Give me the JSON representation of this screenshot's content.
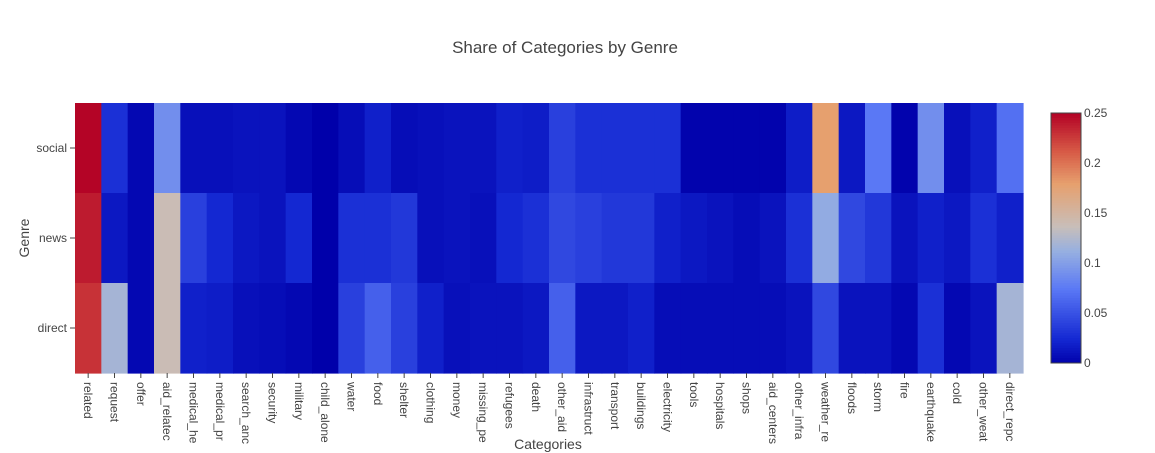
{
  "chart_data": {
    "type": "heatmap",
    "title": "Share of Categories by Genre",
    "xlabel": "Categories",
    "ylabel": "Genre",
    "categories": [
      "related",
      "request",
      "offer",
      "aid_related",
      "medical_help",
      "medical_products",
      "search_and_rescue",
      "security",
      "military",
      "child_alone",
      "water",
      "food",
      "shelter",
      "clothing",
      "money",
      "missing_people",
      "refugees",
      "death",
      "other_aid",
      "infrastructure_related",
      "transport",
      "buildings",
      "electricity",
      "tools",
      "hospitals",
      "shops",
      "aid_centers",
      "other_infrastructure",
      "weather_related",
      "floods",
      "storm",
      "fire",
      "earthquake",
      "cold",
      "other_weather",
      "direct_report"
    ],
    "tick_labels": [
      "related",
      "request",
      "offer",
      "aid_relatec",
      "medical_he",
      "medical_pr",
      "search_anc",
      "security",
      "military",
      "child_alone",
      "water",
      "food",
      "shelter",
      "clothing",
      "money",
      "missing_pe",
      "refugees",
      "death",
      "other_aid",
      "infrastruct",
      "transport",
      "buildings",
      "electricity",
      "tools",
      "hospitals",
      "shops",
      "aid_centers",
      "other_infra",
      "weather_re",
      "floods",
      "storm",
      "fire",
      "earthquake",
      "cold",
      "other_weat",
      "direct_repc"
    ],
    "genres": [
      "social",
      "news",
      "direct"
    ],
    "values": [
      [
        0.25,
        0.03,
        0.005,
        0.09,
        0.01,
        0.01,
        0.012,
        0.012,
        0.005,
        0.0,
        0.008,
        0.02,
        0.008,
        0.01,
        0.012,
        0.012,
        0.02,
        0.018,
        0.04,
        0.03,
        0.03,
        0.03,
        0.03,
        0.002,
        0.002,
        0.002,
        0.002,
        0.018,
        0.18,
        0.015,
        0.075,
        0.002,
        0.09,
        0.01,
        0.02,
        0.07
      ],
      [
        0.24,
        0.015,
        0.005,
        0.14,
        0.04,
        0.025,
        0.015,
        0.012,
        0.025,
        0.0,
        0.03,
        0.03,
        0.035,
        0.01,
        0.012,
        0.01,
        0.025,
        0.03,
        0.045,
        0.04,
        0.035,
        0.035,
        0.02,
        0.015,
        0.012,
        0.008,
        0.012,
        0.03,
        0.11,
        0.045,
        0.035,
        0.012,
        0.02,
        0.015,
        0.03,
        0.02
      ],
      [
        0.23,
        0.12,
        0.005,
        0.14,
        0.02,
        0.018,
        0.01,
        0.008,
        0.005,
        0.0,
        0.04,
        0.06,
        0.04,
        0.02,
        0.01,
        0.012,
        0.012,
        0.015,
        0.06,
        0.015,
        0.015,
        0.02,
        0.008,
        0.008,
        0.008,
        0.008,
        0.008,
        0.012,
        0.045,
        0.012,
        0.012,
        0.005,
        0.03,
        0.005,
        0.012,
        0.12
      ]
    ],
    "zmin": 0,
    "zmax": 0.25,
    "colorscale_name": "coolwarm",
    "colorbar_ticks": [
      "0",
      "0.05",
      "0.1",
      "0.15",
      "0.2",
      "0.25"
    ]
  }
}
